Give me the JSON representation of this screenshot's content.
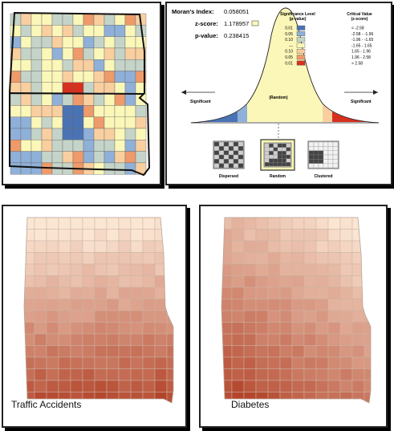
{
  "moran": {
    "index_label": "Moran's Index:",
    "index_value": "0.058051",
    "z_label": "z-score:",
    "z_value": "1.178957",
    "p_label": "p-value:",
    "p_value": "0.238415"
  },
  "legend": {
    "sig_header_1": "Significance Level",
    "sig_header_2": "(p-value)",
    "crit_header_1": "Critical Value",
    "crit_header_2": "(z-score)",
    "rows": [
      {
        "p": "0.01",
        "z": "< -2.58",
        "color": "#4a73b5"
      },
      {
        "p": "0.05",
        "z": "-2.58 - -1.96",
        "color": "#8fb0d8"
      },
      {
        "p": "0.10",
        "z": "-1.96 - -1.65",
        "color": "#c5d4c8"
      },
      {
        "p": "---",
        "z": "-1.65 - 1.65",
        "color": "#fbf7b8"
      },
      {
        "p": "0.10",
        "z": "1.65 - 1.96",
        "color": "#f9cfa0"
      },
      {
        "p": "0.05",
        "z": "1.96 - 2.58",
        "color": "#ef9a6a"
      },
      {
        "p": "0.01",
        "z": "> 2.58",
        "color": "#d7301f"
      }
    ]
  },
  "curve": {
    "significant_left": "Significant",
    "significant_right": "Significant",
    "random_label": "(Random)",
    "patterns": [
      "Dispersed",
      "Random",
      "Clustered"
    ]
  },
  "maps": {
    "traffic_caption": "Traffic Accidents",
    "diabetes_caption": "Diabetes"
  },
  "colors": {
    "low_strong": "#4a73b5",
    "low": "#8fb0d8",
    "low_weak": "#c5d4c8",
    "neutral": "#fbf7b8",
    "high_weak": "#f9cfa0",
    "high": "#ef9a6a",
    "high_strong": "#d7301f",
    "choropleth_light": "#fbe6d4",
    "choropleth_dark": "#b3442a"
  }
}
